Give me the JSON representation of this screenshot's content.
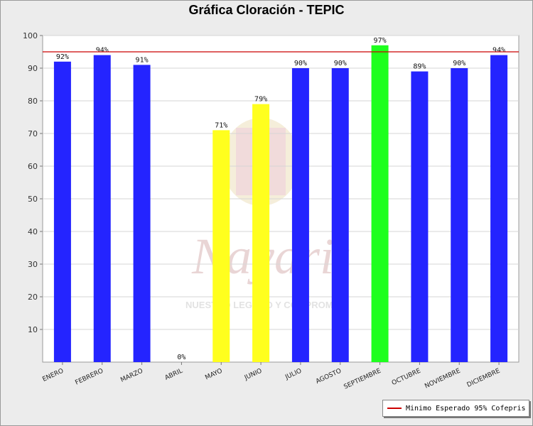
{
  "chart_data": {
    "type": "bar",
    "title": "Gráfica Cloración - TEPIC",
    "xlabel": "",
    "ylabel": "",
    "ylim": [
      0,
      100
    ],
    "yticks": [
      10,
      20,
      30,
      40,
      50,
      60,
      70,
      80,
      90,
      100
    ],
    "grid": true,
    "categories": [
      "ENERO",
      "FEBRERO",
      "MARZO",
      "ABRIL",
      "MAYO",
      "JUNIO",
      "JULIO",
      "AGOSTO",
      "SEPTIEMBRE",
      "OCTUBRE",
      "NOVIEMBRE",
      "DICIEMBRE"
    ],
    "values": [
      92,
      94,
      91,
      0,
      71,
      79,
      90,
      90,
      97,
      89,
      90,
      94
    ],
    "data_labels": [
      "92%",
      "94%",
      "91%",
      "0%",
      "71%",
      "79%",
      "90%",
      "90%",
      "97%",
      "89%",
      "90%",
      "94%"
    ],
    "bar_colors": [
      "#2424ff",
      "#2424ff",
      "#2424ff",
      "#2424ff",
      "#ffff1e",
      "#ffff1e",
      "#2424ff",
      "#2424ff",
      "#1eff1e",
      "#2424ff",
      "#2424ff",
      "#2424ff"
    ],
    "reference_line": {
      "value": 95,
      "label": "Minimo Esperado 95% Cofepris",
      "color": "#cc0000"
    },
    "legend_position": "bottom-right"
  },
  "watermark": {
    "text_main": "Nayarit",
    "text_sub": "NUESTRO LEGADO Y COMPROMISO"
  }
}
